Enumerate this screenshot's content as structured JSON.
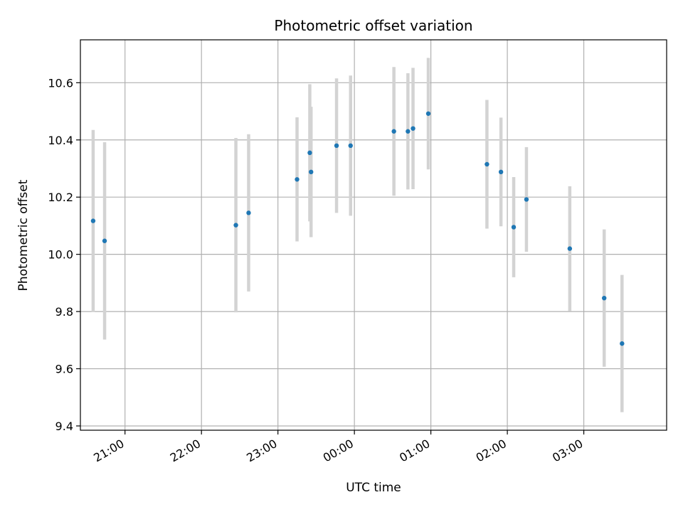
{
  "chart_data": {
    "type": "scatter",
    "title": "Photometric offset variation",
    "xlabel": "UTC time",
    "ylabel": "Photometric offset",
    "grid": true,
    "x_tick_labels": [
      "21:00",
      "22:00",
      "23:00",
      "00:00",
      "01:00",
      "02:00",
      "03:00"
    ],
    "x_tick_values": [
      "21:00",
      "22:00",
      "23:00",
      "00:00",
      "01:00",
      "02:00",
      "03:00"
    ],
    "y_tick_labels": [
      "9.4",
      "9.6",
      "9.8",
      "10.0",
      "10.2",
      "10.4",
      "10.6"
    ],
    "y_tick_values": [
      9.4,
      9.6,
      9.8,
      10.0,
      10.2,
      10.4,
      10.6
    ],
    "xlim": [
      "20:25",
      "04:05"
    ],
    "ylim": [
      9.385,
      10.75
    ],
    "marker_color": "#1f77b4",
    "errorbar_color": "#d3d3d3",
    "points": [
      {
        "t": "20:35",
        "y": 10.117,
        "err": 0.318
      },
      {
        "t": "20:44",
        "y": 10.047,
        "err": 0.345
      },
      {
        "t": "22:27",
        "y": 10.102,
        "err": 0.305
      },
      {
        "t": "22:37",
        "y": 10.145,
        "err": 0.275
      },
      {
        "t": "23:15",
        "y": 10.262,
        "err": 0.217
      },
      {
        "t": "23:25",
        "y": 10.355,
        "err": 0.24
      },
      {
        "t": "23:26",
        "y": 10.288,
        "err": 0.228
      },
      {
        "t": "23:46",
        "y": 10.38,
        "err": 0.235
      },
      {
        "t": "23:57",
        "y": 10.38,
        "err": 0.245
      },
      {
        "t": "00:31",
        "y": 10.43,
        "err": 0.225
      },
      {
        "t": "00:42",
        "y": 10.43,
        "err": 0.203
      },
      {
        "t": "00:46",
        "y": 10.44,
        "err": 0.212
      },
      {
        "t": "00:58",
        "y": 10.492,
        "err": 0.195
      },
      {
        "t": "01:44",
        "y": 10.315,
        "err": 0.225
      },
      {
        "t": "01:55",
        "y": 10.288,
        "err": 0.19
      },
      {
        "t": "02:05",
        "y": 10.095,
        "err": 0.175
      },
      {
        "t": "02:15",
        "y": 10.192,
        "err": 0.183
      },
      {
        "t": "02:49",
        "y": 10.02,
        "err": 0.218
      },
      {
        "t": "03:16",
        "y": 9.847,
        "err": 0.24
      },
      {
        "t": "03:30",
        "y": 9.688,
        "err": 0.24
      }
    ]
  }
}
